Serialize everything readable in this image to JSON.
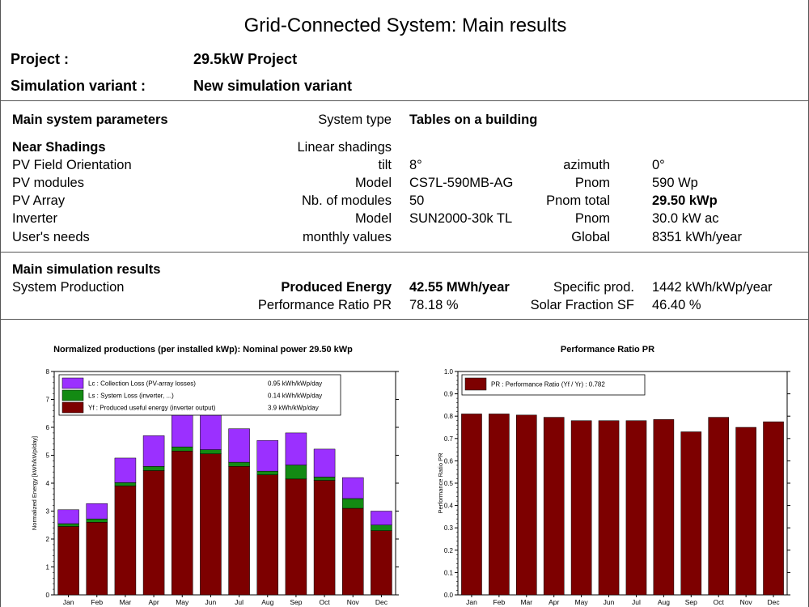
{
  "title": "Grid-Connected System: Main results",
  "project": {
    "label": "Project :",
    "value": "29.5kW Project"
  },
  "variant": {
    "label": "Simulation variant :",
    "value": "New simulation variant"
  },
  "params": {
    "heading": "Main system parameters",
    "system_type_label": "System type",
    "system_type_value": "Tables on a building",
    "rows": [
      {
        "name": "Near Shadings",
        "label": "Linear shadings",
        "value": "",
        "label2": "",
        "value2": ""
      },
      {
        "name": "PV Field Orientation",
        "label": "tilt",
        "value": "8°",
        "label2": "azimuth",
        "value2": "0°"
      },
      {
        "name": "PV modules",
        "label": "Model",
        "value": "CS7L-590MB-AG",
        "label2": "Pnom",
        "value2": "590 Wp"
      },
      {
        "name": "PV Array",
        "label": "Nb. of modules",
        "value": "50",
        "label2": "Pnom total",
        "value2": "29.50 kWp"
      },
      {
        "name": "Inverter",
        "label": "Model",
        "value": "SUN2000-30k TL",
        "label2": "Pnom",
        "value2": "30.0 kW ac"
      },
      {
        "name": "User's needs",
        "label": "monthly values",
        "value": "",
        "label2": "Global",
        "value2": "8351 kWh/year"
      }
    ]
  },
  "results": {
    "heading": "Main simulation results",
    "system_production": "System Production",
    "produced_energy_label": "Produced Energy",
    "produced_energy_value": "42.55 MWh/year",
    "specific_prod_label": "Specific prod.",
    "specific_prod_value": "1442  kWh/kWp/year",
    "pr_label": "Performance Ratio PR",
    "pr_value": "78.18 %",
    "sf_label": "Solar Fraction SF",
    "sf_value": "46.40 %"
  },
  "colors": {
    "collection_loss": "#9b30ff",
    "system_loss": "#138a13",
    "useful": "#7d0000",
    "pr": "#7d0000"
  },
  "chart_data": [
    {
      "type": "bar",
      "stacked": true,
      "title": "Normalized productions (per installed kWp):  Nominal power 29.50  kWp",
      "ylabel": "Normalized   Energy   [kWh/kWp/day]",
      "xlabel": "",
      "ylim": [
        0,
        8
      ],
      "yticks": [
        "0",
        "1",
        "2",
        "3",
        "4",
        "5",
        "6",
        "7",
        "8"
      ],
      "categories": [
        "Jan",
        "Feb",
        "Mar",
        "Apr",
        "May",
        "Jun",
        "Jul",
        "Aug",
        "Sep",
        "Oct",
        "Nov",
        "Dec"
      ],
      "legend_position": "top-left",
      "series": [
        {
          "name": "Yf : Produced useful energy  (inverter output)",
          "legend_value": "3.9 kWh/kWp/day",
          "color": "#7d0000",
          "values": [
            2.45,
            2.6,
            3.9,
            4.45,
            5.15,
            5.05,
            4.6,
            4.3,
            4.15,
            4.1,
            3.1,
            2.3
          ]
        },
        {
          "name": "Ls : System Loss  (inverter, ...)",
          "legend_value": "0.14 kWh/kWp/day",
          "color": "#138a13",
          "values": [
            0.1,
            0.12,
            0.12,
            0.15,
            0.15,
            0.15,
            0.15,
            0.13,
            0.5,
            0.12,
            0.35,
            0.2
          ]
        },
        {
          "name": "Lc : Collection Loss (PV-array losses)",
          "legend_value": "0.95 kWh/kWp/day",
          "color": "#9b30ff",
          "values": [
            0.5,
            0.55,
            0.88,
            1.1,
            1.4,
            1.35,
            1.2,
            1.1,
            1.15,
            1.0,
            0.75,
            0.5
          ]
        }
      ]
    },
    {
      "type": "bar",
      "title": "Performance  Ratio  PR",
      "ylabel": "Performance   Ratio   PR",
      "xlabel": "",
      "ylim": [
        0,
        1.0
      ],
      "yticks": [
        "0.0",
        "0.1",
        "0.2",
        "0.3",
        "0.4",
        "0.5",
        "0.6",
        "0.7",
        "0.8",
        "0.9",
        "1.0"
      ],
      "categories": [
        "Jan",
        "Feb",
        "Mar",
        "Apr",
        "May",
        "Jun",
        "Jul",
        "Aug",
        "Sep",
        "Oct",
        "Nov",
        "Dec"
      ],
      "legend_position": "top-left",
      "series": [
        {
          "name": "PR : Performance Ratio (Yf / Yr) :  0.782",
          "color": "#7d0000",
          "values": [
            0.81,
            0.81,
            0.805,
            0.795,
            0.78,
            0.78,
            0.78,
            0.785,
            0.73,
            0.795,
            0.75,
            0.775
          ]
        }
      ]
    }
  ]
}
